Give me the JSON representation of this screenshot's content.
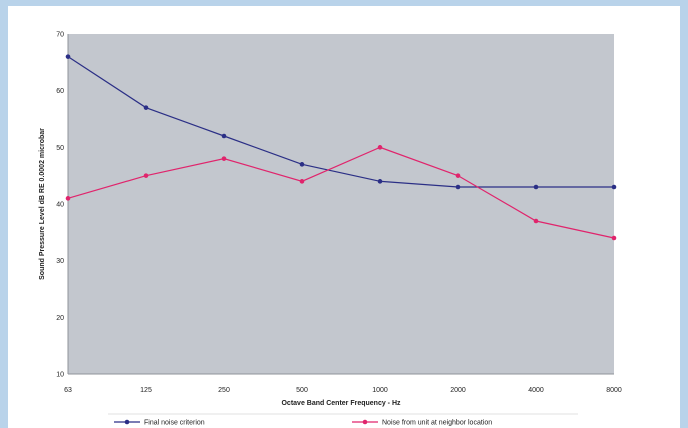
{
  "chart_data": {
    "type": "line",
    "categories": [
      "63",
      "125",
      "250",
      "500",
      "1000",
      "2000",
      "4000",
      "8000"
    ],
    "series": [
      {
        "name": "Final noise criterion",
        "values": [
          66,
          57,
          52,
          47,
          44,
          43,
          43,
          43
        ],
        "color": "#2b2f86"
      },
      {
        "name": "Noise from unit at neighbor location",
        "values": [
          41,
          45,
          48,
          44,
          50,
          45,
          37,
          34
        ],
        "color": "#e0246c"
      }
    ],
    "xlabel": "Octave Band Center Frequency - Hz",
    "ylabel": "Sound Pressure Level dB RE 0.0002 microbar",
    "ylim": [
      10,
      70
    ],
    "yticks": [
      10,
      20,
      30,
      40,
      50,
      60,
      70
    ],
    "grid": false,
    "legend": "bottom",
    "plot_background": "#c3c7ce"
  }
}
